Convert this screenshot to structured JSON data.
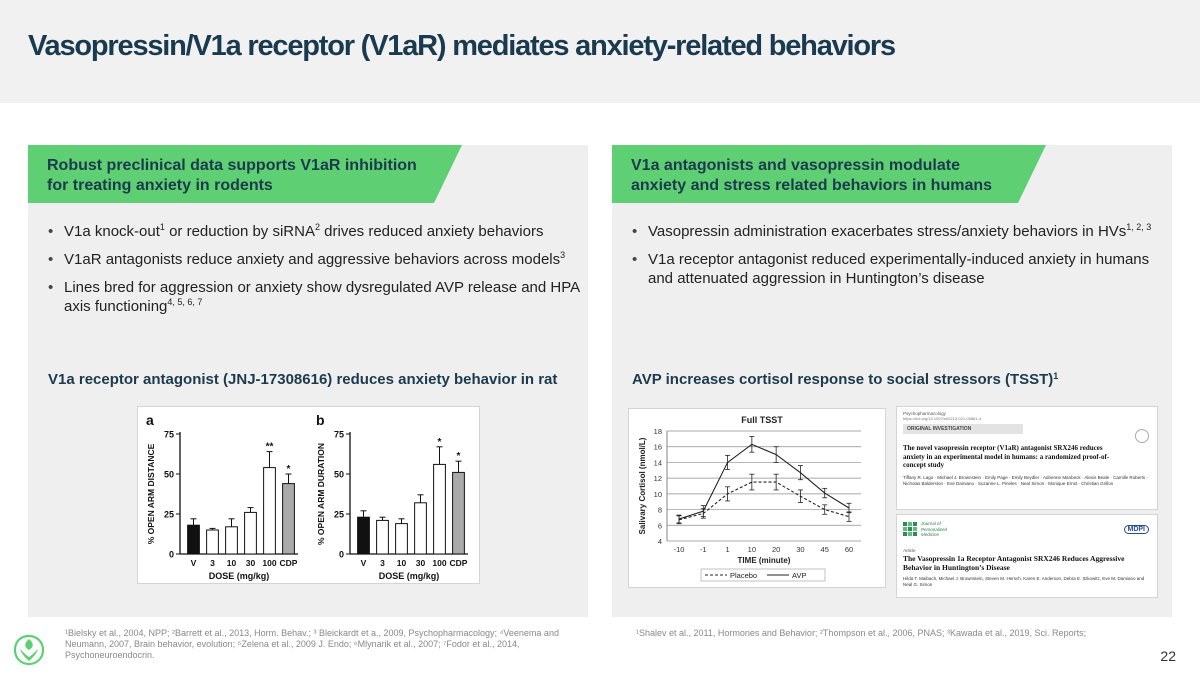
{
  "slide": {
    "title": "Vasopressin/V1a receptor (V1aR) mediates anxiety-related behaviors",
    "page_number": "22"
  },
  "left_panel": {
    "banner": "Robust preclinical data supports V1aR inhibition\nfor treating anxiety in rodents",
    "bullets": [
      {
        "text": "V1a knock-out",
        "sup": "1",
        "text2": " or reduction by siRNA",
        "sup2": "2",
        "text3": " drives reduced anxiety behaviors"
      },
      {
        "text": "V1aR antagonists reduce anxiety and aggressive behaviors across models",
        "sup": "3"
      },
      {
        "text": "Lines bred for aggression or anxiety show dysregulated AVP release and HPA axis functioning",
        "sup": "4, 5, 6, 7"
      }
    ],
    "chart_title": "V1a receptor antagonist (JNJ-17308616) reduces anxiety behavior in rat",
    "footnote": "¹Bielsky et al., 2004, NPP; ²Barrett et al., 2013, Horm. Behav.; ³ Bleickardt et a., 2009, Psychopharmacology; ⁴Veenema and Neumann, 2007, Brain behavior, evolution; ⁵Zelena et al., 2009 J. Endo; ⁶Mlynarik et al., 2007; ⁷Fodor et al., 2014, Psychoneuroendocrin."
  },
  "right_panel": {
    "banner": "V1a antagonists and vasopressin modulate\nanxiety and stress related behaviors in humans",
    "bullets": [
      {
        "text": "Vasopressin administration exacerbates stress/anxiety behaviors in HVs",
        "sup": "1, 2, 3"
      },
      {
        "text": "V1a receptor antagonist reduced experimentally-induced anxiety in humans and attenuated aggression in Huntington’s disease",
        "sup": ""
      }
    ],
    "chart_title": "AVP increases cortisol response to social stressors (TSST)",
    "chart_title_sup": "1",
    "footnote": "¹Shalev et al., 2011, Hormones and Behavior; ²Thompson et al., 2006, PNAS; ³Kawada et al., 2019, Sci. Reports;"
  },
  "papers": {
    "paper1": {
      "journal": "Psychopharmacology",
      "doi": "https://doi.org/10.1007/s00213-021-05861-4",
      "section": "ORIGINAL INVESTIGATION",
      "title": "The novel vasopressin receptor (V1aR) antagonist SRX246 reduces anxiety in an experimental model in humans: a randomized proof-of-concept study",
      "authors": "Tiffany R. Lago · Michael J. Brownstein · Emily Page · Emily Beydler · Adrienne Manbeck · Alexis Beale · Camille Roberts · Nicholas Balderston · Eve Damiano · Suzanne L. Pineles · Neal Simon · Monique Ernst · Christian Grillon"
    },
    "paper2": {
      "journal_line1": "Journal of",
      "journal_line2": "Personalized",
      "journal_line3": "Medicine",
      "publisher": "MDPI",
      "type": "Article",
      "title": "The Vasopressin 1a Receptor Antagonist SRX246 Reduces Aggressive Behavior in Huntington’s Disease",
      "authors": "Hilda T. Maibach, Michael J. Brownstein, Steven M. Hersch, Karen E. Anderson, Debra E. Itzkowitz, Eve M. Damiano and Neal G. Simon"
    }
  },
  "chart_data": [
    {
      "type": "bar",
      "panel_label": "a",
      "categories": [
        "V",
        "3",
        "10",
        "30",
        "100",
        "CDP"
      ],
      "values": [
        18,
        15,
        17,
        26,
        54,
        44
      ],
      "errors": [
        4,
        1,
        5,
        3,
        10,
        6
      ],
      "significance": [
        "",
        "",
        "",
        "",
        "**",
        "*"
      ],
      "bar_colors": [
        "#111111",
        "#ffffff",
        "#ffffff",
        "#ffffff",
        "#ffffff",
        "#aaaaaa"
      ],
      "xlabel": "DOSE (mg/kg)",
      "ylabel": "% OPEN ARM DISTANCE",
      "yticks": [
        0,
        25,
        50,
        75
      ],
      "ylim": [
        0,
        75
      ]
    },
    {
      "type": "bar",
      "panel_label": "b",
      "categories": [
        "V",
        "3",
        "10",
        "30",
        "100",
        "CDP"
      ],
      "values": [
        23,
        21,
        19,
        32,
        56,
        51
      ],
      "errors": [
        4,
        2,
        3,
        5,
        11,
        7
      ],
      "significance": [
        "",
        "",
        "",
        "",
        "*",
        "*"
      ],
      "bar_colors": [
        "#111111",
        "#ffffff",
        "#ffffff",
        "#ffffff",
        "#ffffff",
        "#aaaaaa"
      ],
      "xlabel": "DOSE (mg/kg)",
      "ylabel": "% OPEN ARM DURATION",
      "yticks": [
        0,
        25,
        50,
        75
      ],
      "ylim": [
        0,
        75
      ]
    },
    {
      "type": "line",
      "title": "Full TSST",
      "x": [
        "-10",
        "-1",
        "1",
        "10",
        "20",
        "30",
        "45",
        "60"
      ],
      "xlabel": "TIME (minute)",
      "ylabel": "Salivary Cortisol (nmol/L)",
      "yticks": [
        4,
        6,
        8,
        10,
        12,
        14,
        16,
        18
      ],
      "ylim": [
        4,
        18
      ],
      "series": [
        {
          "name": "Placebo",
          "style": "dashed",
          "values": [
            6.7,
            7.5,
            10.0,
            11.5,
            11.5,
            9.7,
            8.0,
            7.1
          ],
          "errors": [
            0.5,
            0.6,
            0.9,
            1.0,
            1.0,
            0.8,
            0.6,
            0.6
          ]
        },
        {
          "name": "AVP",
          "style": "solid",
          "values": [
            6.8,
            7.8,
            14.0,
            16.3,
            15.0,
            12.7,
            10.1,
            8.2
          ],
          "errors": [
            0.5,
            0.7,
            0.9,
            1.0,
            1.0,
            0.9,
            0.6,
            0.6
          ]
        }
      ]
    }
  ]
}
